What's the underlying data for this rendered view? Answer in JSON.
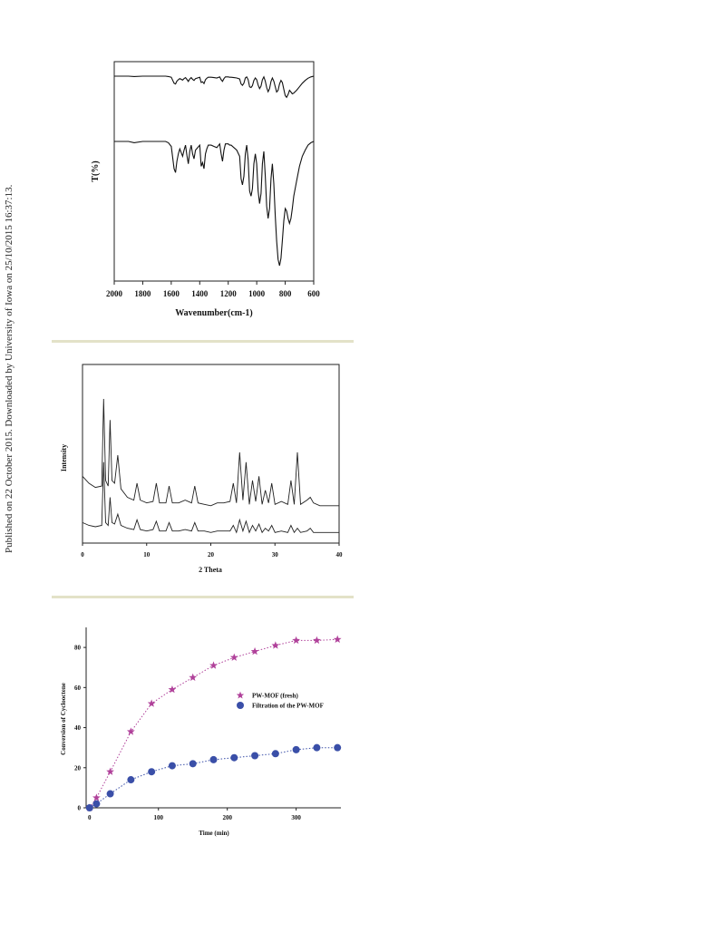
{
  "page": {
    "sidebar_note": "Published on 22 October 2015. Downloaded by University of Iowa on 25/10/2015 16:37:13."
  },
  "chart_data": [
    {
      "type": "line",
      "title": "",
      "xlabel": "Wavenumber(cm-1)",
      "ylabel": "T(%)",
      "xlim": [
        2000,
        600
      ],
      "x_reversed": true,
      "xticks": [
        "2000",
        "1800",
        "1600",
        "1400",
        "1200",
        "1000",
        "800",
        "600"
      ],
      "grid": false,
      "series": [
        {
          "x": [
            2000,
            1900,
            1860,
            1800,
            1700,
            1640,
            1620,
            1600,
            1580,
            1570,
            1560,
            1550,
            1540,
            1520,
            1510,
            1500,
            1490,
            1480,
            1470,
            1460,
            1450,
            1440,
            1430,
            1400,
            1390,
            1380,
            1370,
            1360,
            1350,
            1340,
            1320,
            1300,
            1280,
            1260,
            1250,
            1240,
            1230,
            1220,
            1200,
            1190,
            1180,
            1160,
            1140,
            1120,
            1110,
            1100,
            1090,
            1080,
            1070,
            1060,
            1050,
            1040,
            1030,
            1020,
            1010,
            1000,
            990,
            980,
            970,
            960,
            950,
            940,
            930,
            920,
            910,
            900,
            890,
            880,
            870,
            860,
            850,
            840,
            830,
            820,
            810,
            800,
            790,
            780,
            770,
            760,
            750,
            740,
            720,
            700,
            680,
            660,
            640,
            620,
            600
          ],
          "y": [
            1.0,
            1.0,
            0.99,
            1.0,
            1.0,
            1.0,
            0.99,
            0.97,
            0.8,
            0.78,
            0.86,
            0.9,
            0.93,
            0.89,
            0.93,
            0.96,
            0.91,
            0.85,
            0.92,
            0.96,
            0.91,
            0.88,
            0.93,
            0.97,
            0.82,
            0.84,
            0.79,
            0.9,
            0.94,
            0.97,
            0.97,
            0.96,
            0.95,
            0.98,
            0.9,
            0.85,
            0.93,
            0.98,
            0.98,
            0.97,
            0.97,
            0.96,
            0.95,
            0.92,
            0.78,
            0.74,
            0.8,
            0.95,
            0.98,
            0.9,
            0.7,
            0.68,
            0.73,
            0.88,
            0.95,
            0.9,
            0.75,
            0.65,
            0.72,
            0.9,
            0.98,
            0.86,
            0.68,
            0.56,
            0.65,
            0.85,
            0.95,
            0.86,
            0.7,
            0.55,
            0.6,
            0.78,
            0.88,
            0.82,
            0.63,
            0.45,
            0.4,
            0.48,
            0.6,
            0.55,
            0.5,
            0.52,
            0.6,
            0.7,
            0.8,
            0.88,
            0.94,
            0.98,
            1.0
          ]
        },
        {
          "x": [
            2000,
            1900,
            1860,
            1800,
            1700,
            1640,
            1620,
            1600,
            1580,
            1570,
            1560,
            1550,
            1540,
            1520,
            1510,
            1500,
            1490,
            1480,
            1470,
            1460,
            1450,
            1440,
            1430,
            1400,
            1390,
            1380,
            1370,
            1360,
            1350,
            1340,
            1320,
            1300,
            1280,
            1260,
            1250,
            1240,
            1230,
            1220,
            1200,
            1190,
            1180,
            1160,
            1140,
            1120,
            1110,
            1100,
            1090,
            1080,
            1070,
            1060,
            1050,
            1040,
            1030,
            1020,
            1010,
            1000,
            990,
            980,
            970,
            960,
            950,
            940,
            930,
            920,
            910,
            900,
            890,
            880,
            870,
            860,
            850,
            840,
            830,
            820,
            810,
            800,
            790,
            780,
            770,
            760,
            750,
            740,
            720,
            700,
            680,
            660,
            640,
            620,
            600
          ],
          "y": [
            1.0,
            1.0,
            0.99,
            1.0,
            1.0,
            1.0,
            0.99,
            0.96,
            0.78,
            0.75,
            0.84,
            0.9,
            0.94,
            0.88,
            0.93,
            0.97,
            0.89,
            0.82,
            0.92,
            0.97,
            0.9,
            0.86,
            0.93,
            0.97,
            0.8,
            0.83,
            0.78,
            0.9,
            0.94,
            0.97,
            0.97,
            0.96,
            0.95,
            0.98,
            0.9,
            0.84,
            0.93,
            0.98,
            0.98,
            0.97,
            0.97,
            0.95,
            0.93,
            0.88,
            0.7,
            0.65,
            0.72,
            0.9,
            0.97,
            0.85,
            0.6,
            0.56,
            0.62,
            0.82,
            0.9,
            0.82,
            0.6,
            0.5,
            0.58,
            0.82,
            0.92,
            0.72,
            0.48,
            0.38,
            0.46,
            0.7,
            0.82,
            0.66,
            0.4,
            0.2,
            0.05,
            0.0,
            0.06,
            0.2,
            0.36,
            0.46,
            0.44,
            0.38,
            0.34,
            0.38,
            0.46,
            0.56,
            0.68,
            0.8,
            0.88,
            0.93,
            0.97,
            0.99,
            1.0
          ]
        }
      ]
    },
    {
      "type": "line",
      "title": "",
      "xlabel": "2 Theta",
      "ylabel": "Intensity",
      "xlim": [
        0,
        40
      ],
      "xticks": [
        "0",
        "10",
        "20",
        "30",
        "40"
      ],
      "grid": false,
      "series": [
        {
          "x": [
            0,
            1,
            2,
            3,
            3.3,
            3.6,
            4,
            4.3,
            4.6,
            5,
            5.5,
            6,
            7,
            8,
            8.5,
            9,
            10,
            11,
            11.5,
            12,
            13,
            13.5,
            14,
            15,
            16,
            17,
            17.5,
            18,
            19,
            20,
            21,
            22,
            23,
            23.5,
            24,
            24.5,
            25,
            25.5,
            26,
            26.5,
            27,
            27.5,
            28,
            28.5,
            29,
            29.5,
            30,
            31,
            32,
            32.5,
            33,
            33.5,
            34,
            35,
            35.5,
            36,
            37,
            38,
            39,
            40
          ],
          "y": [
            0.12,
            0.1,
            0.09,
            0.1,
            0.55,
            0.12,
            0.1,
            0.3,
            0.12,
            0.11,
            0.18,
            0.1,
            0.08,
            0.07,
            0.14,
            0.07,
            0.06,
            0.07,
            0.13,
            0.06,
            0.06,
            0.12,
            0.06,
            0.06,
            0.07,
            0.06,
            0.12,
            0.06,
            0.06,
            0.05,
            0.06,
            0.06,
            0.06,
            0.1,
            0.05,
            0.14,
            0.06,
            0.13,
            0.05,
            0.1,
            0.06,
            0.11,
            0.05,
            0.08,
            0.06,
            0.1,
            0.05,
            0.06,
            0.05,
            0.1,
            0.05,
            0.08,
            0.05,
            0.06,
            0.08,
            0.05,
            0.05,
            0.05,
            0.05,
            0.05
          ]
        },
        {
          "x": [
            0,
            1,
            2,
            3,
            3.3,
            3.6,
            4,
            4.3,
            4.6,
            5,
            5.5,
            6,
            7,
            8,
            8.5,
            9,
            10,
            11,
            11.5,
            12,
            13,
            13.5,
            14,
            15,
            16,
            17,
            17.5,
            18,
            19,
            20,
            21,
            22,
            23,
            23.5,
            24,
            24.5,
            25,
            25.5,
            26,
            26.5,
            27,
            27.5,
            28,
            28.5,
            29,
            29.5,
            30,
            31,
            32,
            32.5,
            33,
            33.5,
            34,
            35,
            35.5,
            36,
            37,
            38,
            39,
            40
          ],
          "y": [
            0.45,
            0.4,
            0.37,
            0.38,
            1.0,
            0.42,
            0.38,
            0.85,
            0.42,
            0.4,
            0.6,
            0.36,
            0.3,
            0.28,
            0.4,
            0.28,
            0.26,
            0.27,
            0.4,
            0.26,
            0.26,
            0.38,
            0.26,
            0.26,
            0.28,
            0.26,
            0.38,
            0.26,
            0.25,
            0.24,
            0.26,
            0.26,
            0.27,
            0.4,
            0.26,
            0.62,
            0.28,
            0.55,
            0.25,
            0.42,
            0.27,
            0.45,
            0.25,
            0.35,
            0.26,
            0.4,
            0.25,
            0.27,
            0.25,
            0.42,
            0.25,
            0.62,
            0.25,
            0.28,
            0.3,
            0.26,
            0.24,
            0.24,
            0.24,
            0.24
          ]
        }
      ]
    },
    {
      "type": "scatter",
      "title": "",
      "xlabel": "Time (min)",
      "ylabel": "Conversion of Cyclooctene",
      "xlim": [
        -5,
        365
      ],
      "ylim": [
        0,
        90
      ],
      "xticks": [
        "0",
        "100",
        "200",
        "300"
      ],
      "yticks": [
        "0",
        "20",
        "40",
        "60",
        "80"
      ],
      "grid": false,
      "legend_position": "center-right",
      "series": [
        {
          "name": "PW-MOF (fresh)",
          "marker": "star",
          "color": "#b0419a",
          "x": [
            0,
            10,
            30,
            60,
            90,
            120,
            150,
            180,
            210,
            240,
            270,
            300,
            330,
            360
          ],
          "y": [
            0,
            5,
            18,
            38,
            52,
            59,
            65,
            71,
            75,
            78,
            81,
            83.5,
            83.5,
            84
          ]
        },
        {
          "name": "Filtration of the PW-MOF",
          "marker": "circle",
          "color": "#3a4fa8",
          "x": [
            0,
            10,
            30,
            60,
            90,
            120,
            150,
            180,
            210,
            240,
            270,
            300,
            330,
            360
          ],
          "y": [
            0,
            2,
            7,
            14,
            18,
            21,
            22,
            24,
            25,
            26,
            27,
            29,
            30,
            30
          ]
        }
      ]
    }
  ]
}
